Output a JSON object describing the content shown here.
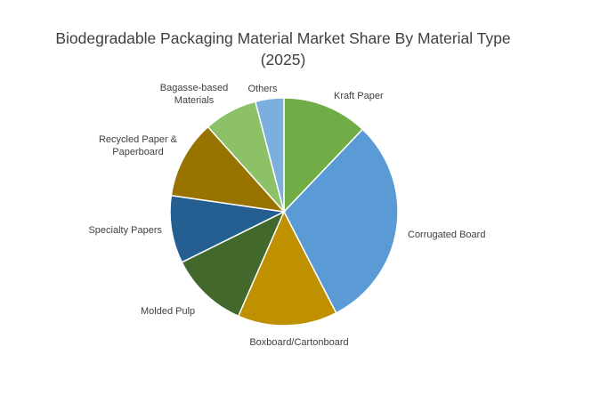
{
  "chart_data": {
    "type": "pie",
    "title_lines": [
      "Biodegradable Packaging Material Market Share By Material Type",
      "(2025)"
    ],
    "unit": "%",
    "slices": [
      {
        "label": "Kraft Paper",
        "value": 12,
        "color": "#70ad47"
      },
      {
        "label": "Corrugated Board",
        "value": 30,
        "color": "#5b9bd5"
      },
      {
        "label": "Boxboard/Cartonboard",
        "value": 14,
        "color": "#bf9000"
      },
      {
        "label": "Molded Pulp",
        "value": 11,
        "color": "#43682b"
      },
      {
        "label": "Specialty Papers",
        "value": 9.5,
        "color": "#255e91"
      },
      {
        "label": "Recycled Paper & Paperboard",
        "value": 11,
        "color": "#997300"
      },
      {
        "label": "Bagasse-based Materials",
        "value": 7.5,
        "color": "#8cc168"
      },
      {
        "label": "Others",
        "value": 4,
        "color": "#7cafdd"
      }
    ],
    "start": "12 o'clock, clockwise",
    "legend": "none (labels outside slices)"
  }
}
